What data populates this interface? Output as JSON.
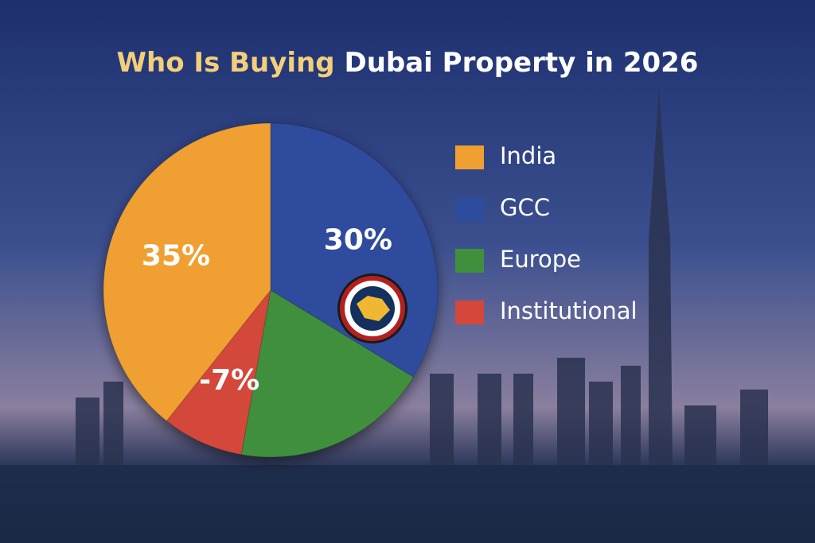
{
  "chart_data": {
    "type": "pie",
    "title_parts": [
      "Who Is Buying",
      "Dubai Property in 2026"
    ],
    "categories": [
      "India",
      "GCC",
      "Europe",
      "Institutional"
    ],
    "values": [
      35,
      30,
      17,
      -7
    ],
    "value_labels": [
      "35%",
      "30%",
      null,
      "-7%"
    ],
    "colors": [
      "#f0a030",
      "#2d4c9e",
      "#3f8f3c",
      "#d4473b"
    ],
    "legend": "right"
  }
}
